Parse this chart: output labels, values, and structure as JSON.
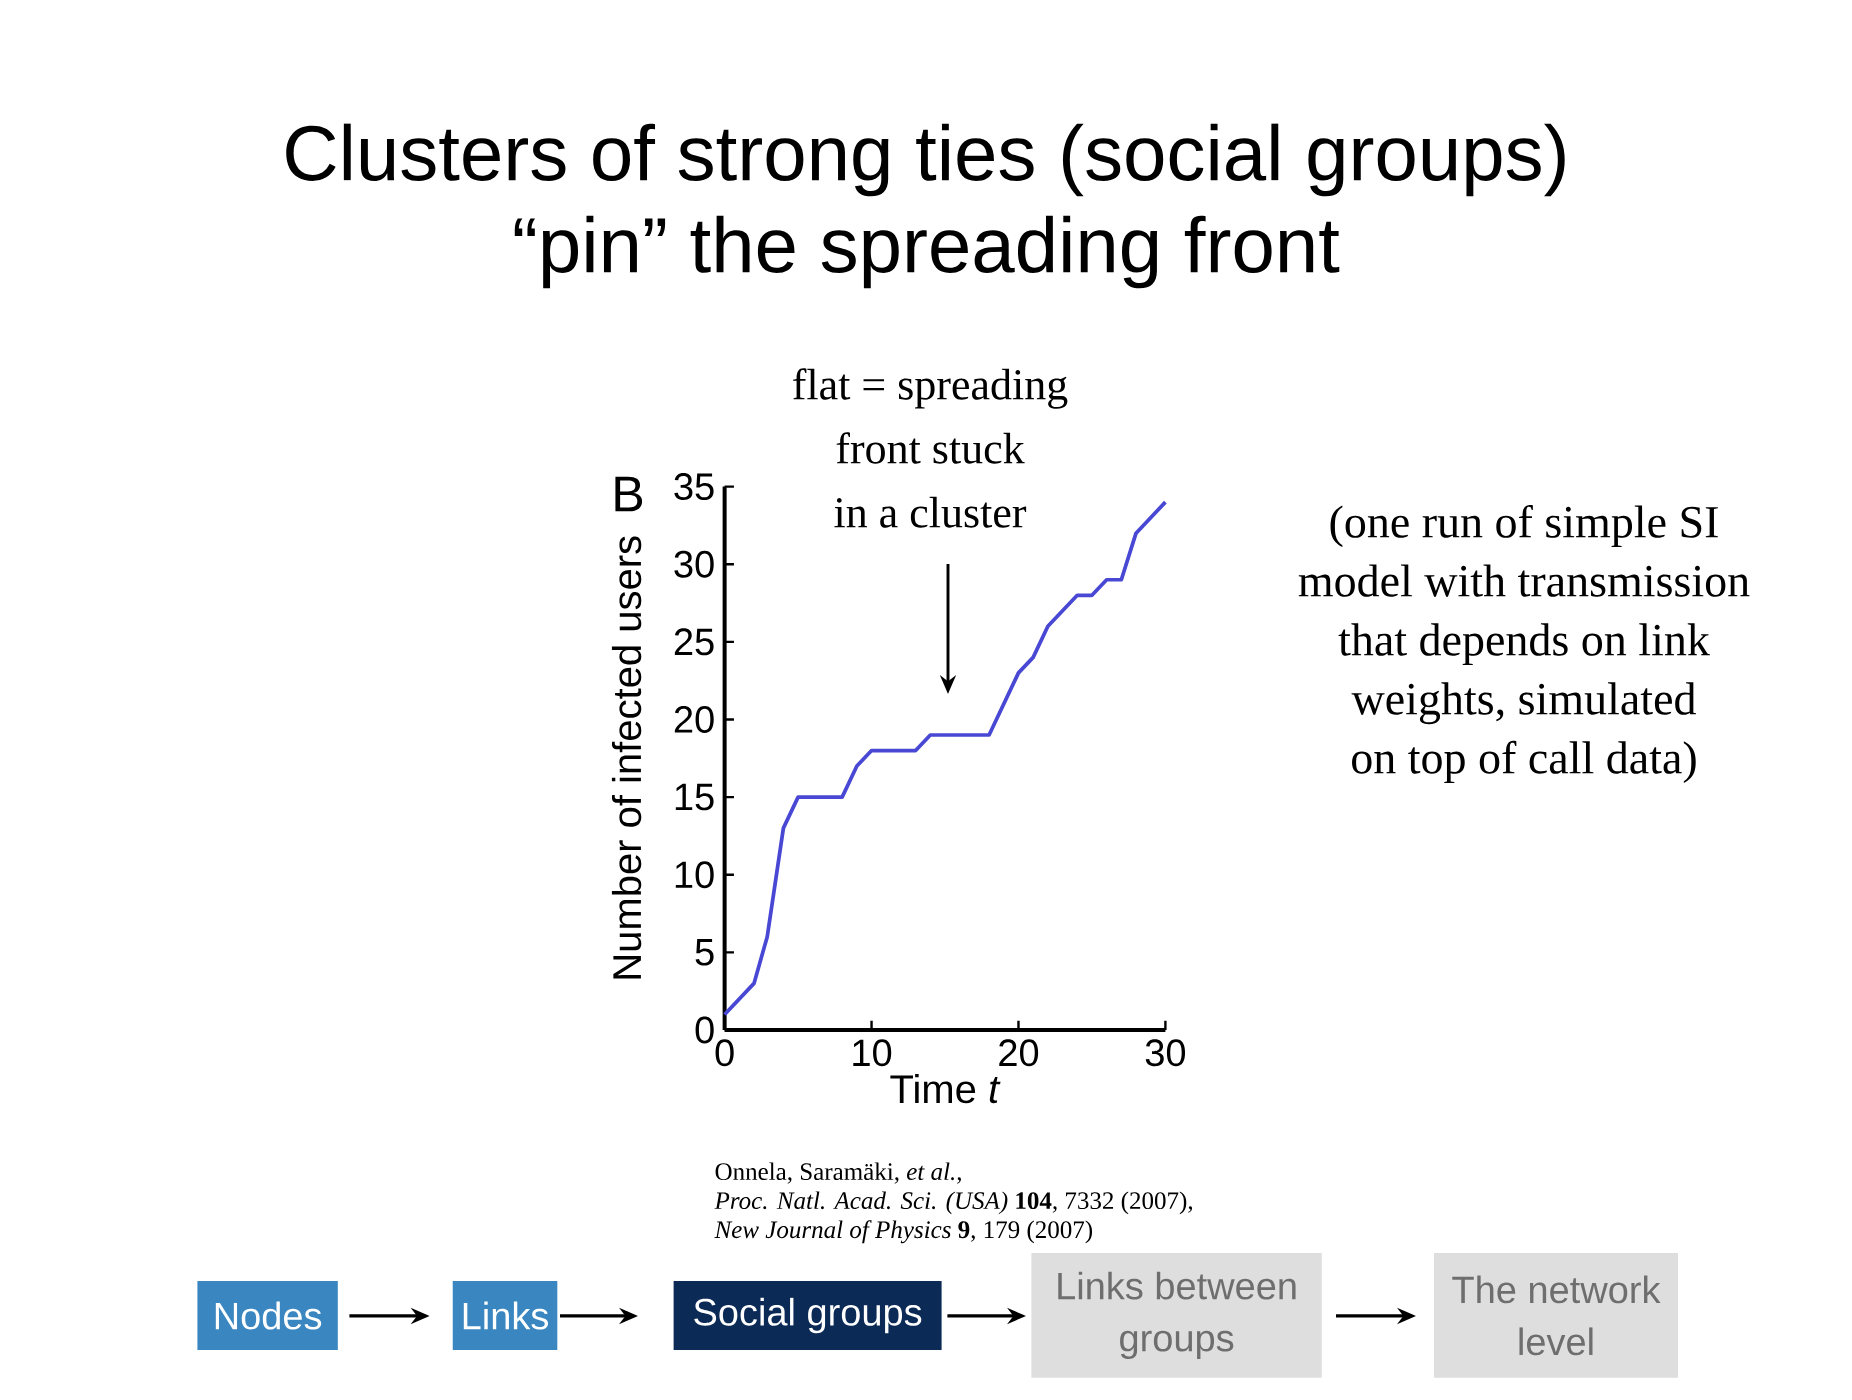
{
  "chart_data": {
    "type": "line",
    "title": "Clusters of strong ties (social groups)\n“pin” the spreading front",
    "xlabel": "Time *t*",
    "ylabel": "Number of infected users",
    "x": [
      0,
      2,
      2.9,
      4,
      5,
      8,
      9,
      10,
      13,
      14,
      18,
      19,
      20,
      21,
      22,
      23,
      24,
      25,
      26,
      27,
      28,
      30
    ],
    "series": [
      {
        "color": "#4848d4",
        "values": [
          1,
          3,
          6,
          13,
          15,
          15,
          17,
          18,
          18,
          19,
          19,
          21,
          23,
          24,
          26,
          27,
          28,
          28,
          29,
          29,
          32,
          34
        ]
      }
    ],
    "xlim": [
      0,
      30
    ],
    "ylim": [
      0,
      35
    ],
    "xticks": [
      0,
      10,
      20,
      30
    ],
    "yticks": [
      0,
      5,
      10,
      15,
      20,
      25,
      30,
      35
    ],
    "annotations": [
      "flat = spreading\nfront stuck\nin a cluster",
      "B",
      "(one run of simple SI\nmodel with transmission\nthat depends on link\nweights, simulated\non top of call data)",
      "Onnela, Saramäki, *et al.*,\n*Proc. Natl. Acad. Sci. (USA)* **104**, 7332 (2007),\n*New Journal of Physics* **9**, 179 (2007)",
      "Nodes",
      "Links",
      "Social groups",
      "Links between\ngroups",
      "The network\nlevel"
    ]
  }
}
